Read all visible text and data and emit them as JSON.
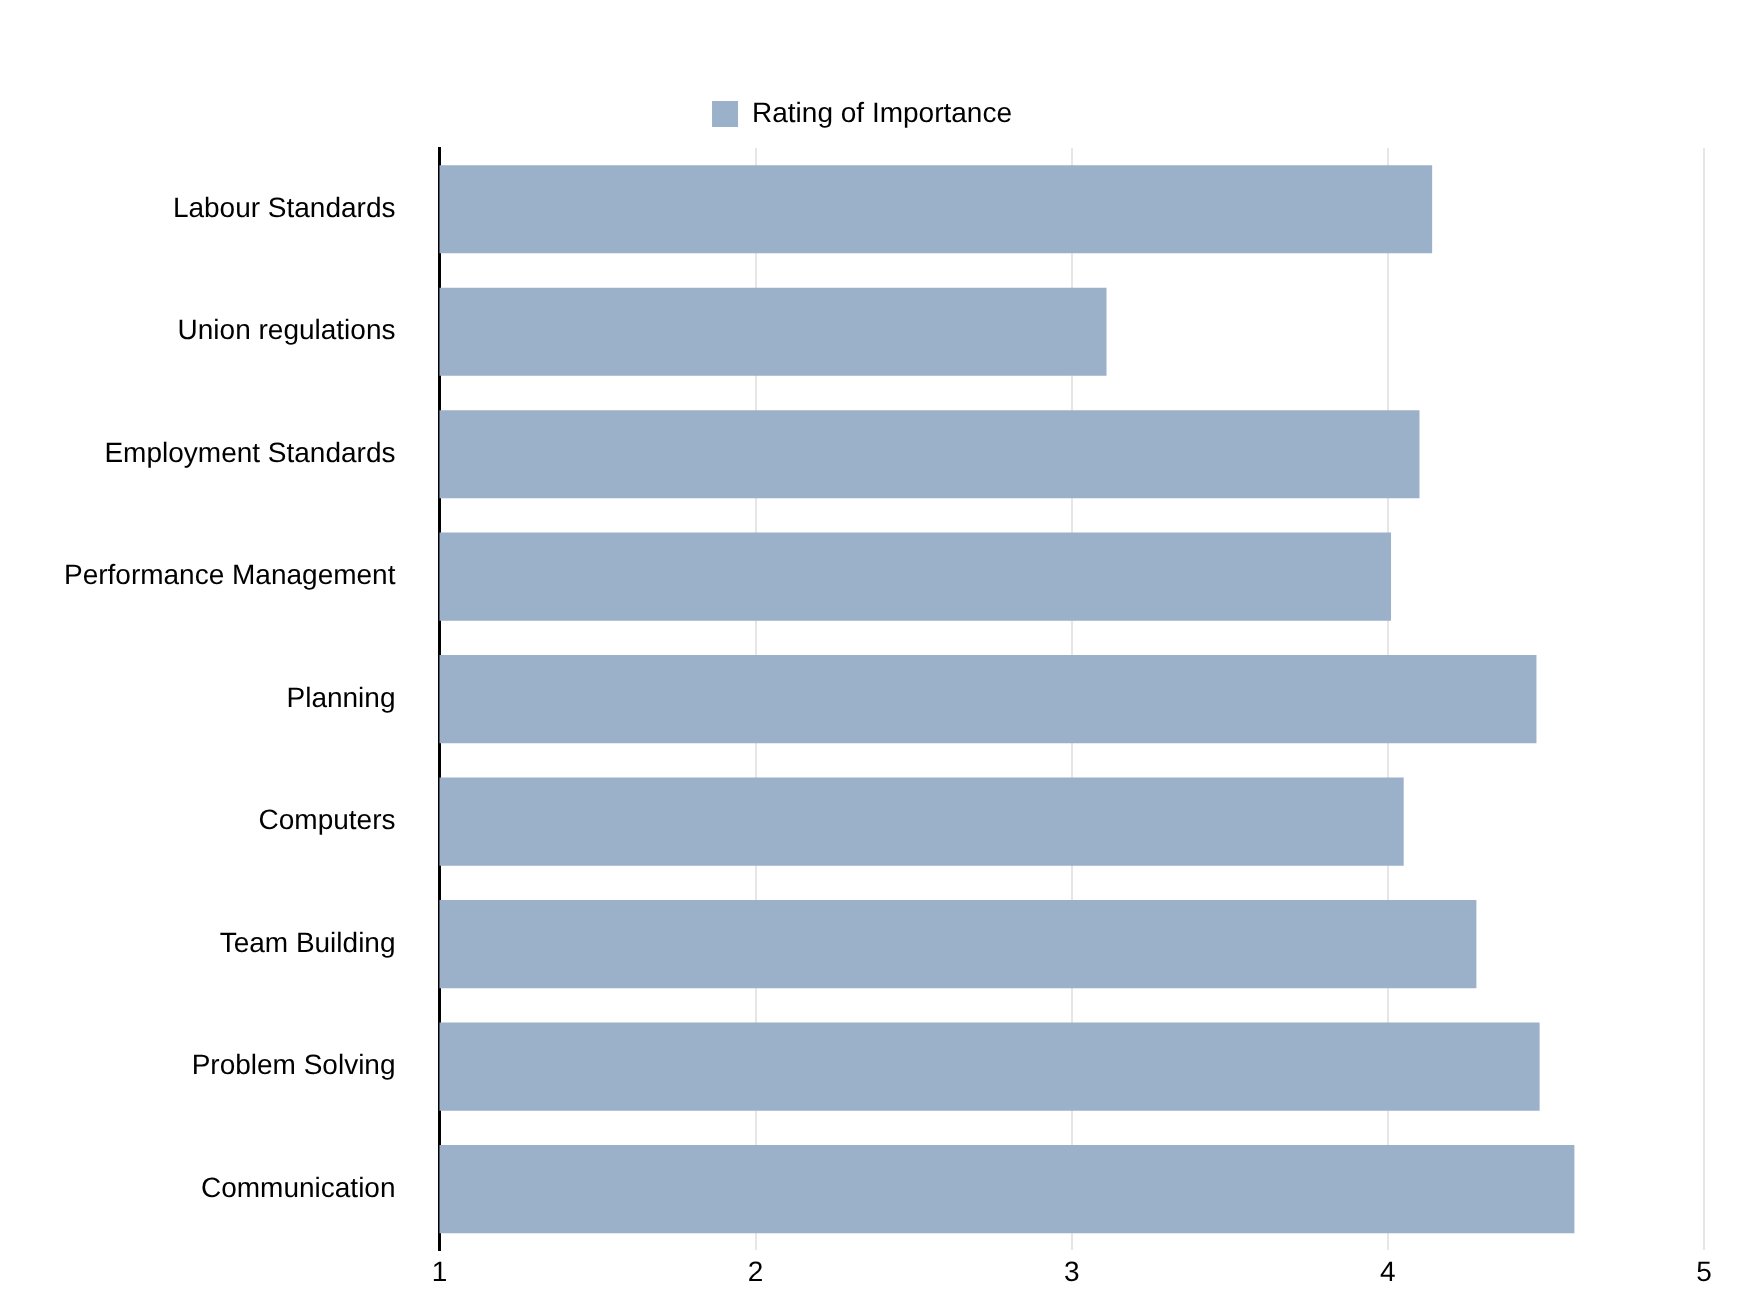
{
  "chart_data": {
    "type": "bar",
    "orientation": "horizontal",
    "categories": [
      "Labour Standards",
      "Union regulations",
      "Employment Standards",
      "Performance Management",
      "Planning",
      "Computers",
      "Team Building",
      "Problem Solving",
      "Communication"
    ],
    "series": [
      {
        "name": "Rating of Importance",
        "color": "#9bb0c9",
        "values": [
          4.14,
          3.11,
          4.1,
          4.01,
          4.47,
          4.05,
          4.28,
          4.48,
          4.59
        ]
      }
    ],
    "xlim": [
      1,
      5
    ],
    "xticks": [
      1,
      2,
      3,
      4,
      5
    ],
    "grid": "x",
    "legend": "top"
  }
}
